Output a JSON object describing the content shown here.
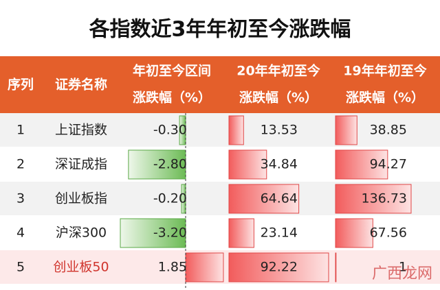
{
  "title": "各指数近3年年初至今涨跌幅",
  "table": {
    "header": [
      [
        "序列"
      ],
      [
        "证券名称"
      ],
      [
        "年初至今区间",
        "涨跌幅（%）"
      ],
      [
        "20年年初至今",
        "涨跌幅（%）"
      ],
      [
        "19年年初至今",
        "涨跌幅（%）"
      ]
    ],
    "rows": [
      [
        "1",
        "上证指数",
        "-0.30",
        "13.53",
        "38.85"
      ],
      [
        "2",
        "深证成指",
        "-2.80",
        "34.84",
        "94.27"
      ],
      [
        "3",
        "创业板指",
        "-0.20",
        "64.64",
        "136.73"
      ],
      [
        "4",
        "沪深300",
        "-3.20",
        "23.14",
        "67.56"
      ],
      [
        "5",
        "创业板50",
        "1.85",
        "92.22",
        "1"
      ]
    ]
  },
  "watermark": "广西龙网"
}
